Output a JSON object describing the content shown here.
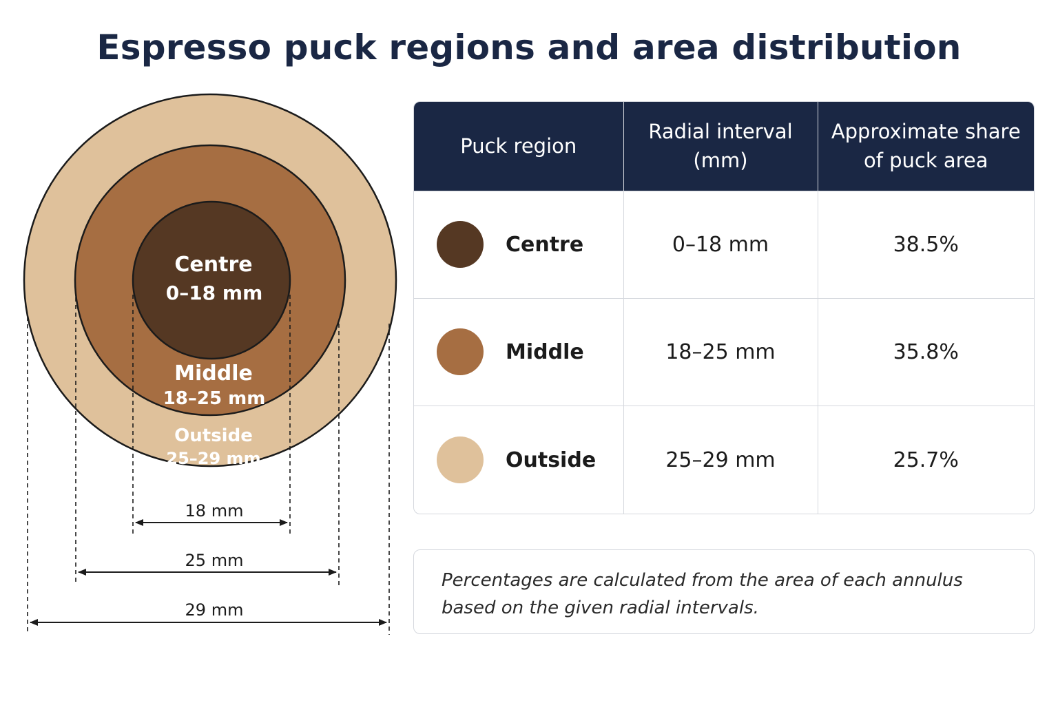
{
  "title": "Espresso puck regions and area distribution",
  "colors": {
    "centre": "#553823",
    "middle": "#a66e42",
    "outside": "#dfc19b",
    "header": "#1a2744"
  },
  "diagram": {
    "rings": [
      {
        "name": "Centre",
        "interval": "0–18 mm",
        "outer_radius_mm": 18,
        "label_color": "#ffffff"
      },
      {
        "name": "Middle",
        "interval": "18–25 mm",
        "outer_radius_mm": 25,
        "label_color": "#ffffff"
      },
      {
        "name": "Outside",
        "interval": "25–29 mm",
        "outer_radius_mm": 29,
        "label_color": "#ffffff"
      }
    ],
    "dimensions": [
      "18 mm",
      "25 mm",
      "29 mm"
    ]
  },
  "table": {
    "headers": {
      "region": "Puck region",
      "interval_line1": "Radial interval",
      "interval_line2": "(mm)",
      "share_line1": "Approximate share",
      "share_line2": "of puck area"
    },
    "rows": [
      {
        "region": "Centre",
        "interval": "0–18 mm",
        "share": "38.5%"
      },
      {
        "region": "Middle",
        "interval": "18–25 mm",
        "share": "35.8%"
      },
      {
        "region": "Outside",
        "interval": "25–29 mm",
        "share": "25.7%"
      }
    ]
  },
  "note": {
    "line1": "Percentages are calculated from the area of each annulus",
    "line2": "based on the given radial intervals."
  }
}
